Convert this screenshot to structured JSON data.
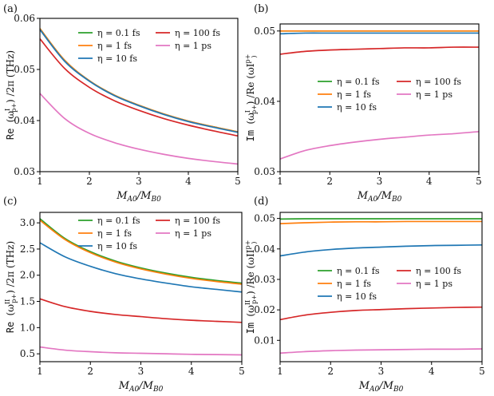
{
  "colors": {
    "eta_0_1fs": "#2ca02c",
    "eta_1fs": "#ff7f0e",
    "eta_10fs": "#1f77b4",
    "eta_100fs": "#d62728",
    "eta_1ps": "#e377c2"
  },
  "legend_labels": [
    "η = 0.1 fs",
    "η = 1 fs",
    "η = 10 fs",
    "η = 100 fs",
    "η = 1 ps"
  ],
  "chart_data": [
    {
      "type": "line",
      "panel": "(a)",
      "xlabel": "M_A0/M_B0",
      "ylabel": "Re (ω^I_{p+}) /2π (THz)",
      "xlim": [
        1,
        5
      ],
      "ylim": [
        0.03,
        0.06
      ],
      "xticks": [
        "1",
        "2",
        "3",
        "4",
        "5"
      ],
      "yticks": [
        "0.03",
        "0.04",
        "0.05",
        "0.06"
      ],
      "legend_position": "top-right",
      "x": [
        1,
        1.5,
        2,
        2.5,
        3,
        3.5,
        4,
        4.5,
        5
      ],
      "series": [
        {
          "name": "η = 0.1 fs",
          "values": [
            0.058,
            0.0518,
            0.0478,
            0.045,
            0.043,
            0.0413,
            0.0399,
            0.0388,
            0.0378
          ]
        },
        {
          "name": "η = 1 fs",
          "values": [
            0.058,
            0.0518,
            0.0478,
            0.045,
            0.043,
            0.0413,
            0.0399,
            0.0388,
            0.0378
          ]
        },
        {
          "name": "η = 10 fs",
          "values": [
            0.0578,
            0.0516,
            0.0477,
            0.0449,
            0.0429,
            0.0412,
            0.0398,
            0.0387,
            0.0377
          ]
        },
        {
          "name": "η = 100 fs",
          "values": [
            0.056,
            0.0502,
            0.0465,
            0.0439,
            0.042,
            0.0404,
            0.0391,
            0.038,
            0.037
          ]
        },
        {
          "name": "η = 1 ps",
          "values": [
            0.0453,
            0.0404,
            0.0375,
            0.0357,
            0.0344,
            0.0334,
            0.0326,
            0.032,
            0.0315
          ]
        }
      ]
    },
    {
      "type": "line",
      "panel": "(b)",
      "xlabel": "M_A0/M_B0",
      "ylabel": "Im (ω^I_{p+}) /Re (ω^I_{p+})",
      "xlim": [
        1,
        5
      ],
      "ylim": [
        0.03,
        0.051
      ],
      "xticks": [
        "1",
        "2",
        "3",
        "4",
        "5"
      ],
      "yticks": [
        "0.03",
        "0.04",
        "0.05"
      ],
      "legend_position": "center-right",
      "x": [
        1,
        1.5,
        2,
        2.5,
        3,
        3.5,
        4,
        4.5,
        5
      ],
      "series": [
        {
          "name": "η = 0.1 fs",
          "values": [
            0.05,
            0.05,
            0.05,
            0.05,
            0.05,
            0.05,
            0.05,
            0.05,
            0.05
          ]
        },
        {
          "name": "η = 1 fs",
          "values": [
            0.05,
            0.05,
            0.05,
            0.05,
            0.05,
            0.05,
            0.05,
            0.05,
            0.05
          ]
        },
        {
          "name": "η = 10 fs",
          "values": [
            0.0496,
            0.0497,
            0.0497,
            0.0497,
            0.0497,
            0.0497,
            0.0497,
            0.0497,
            0.0497
          ]
        },
        {
          "name": "η = 100 fs",
          "values": [
            0.0467,
            0.0471,
            0.0473,
            0.0474,
            0.0475,
            0.0476,
            0.0476,
            0.0477,
            0.0477
          ]
        },
        {
          "name": "η = 1 ps",
          "values": [
            0.0318,
            0.033,
            0.0337,
            0.0342,
            0.0346,
            0.0349,
            0.0352,
            0.0354,
            0.0357
          ]
        }
      ]
    },
    {
      "type": "line",
      "panel": "(c)",
      "xlabel": "M_A0/M_B0",
      "ylabel": "Re (ω^II_{p+}) /2π (THz)",
      "xlim": [
        1,
        5
      ],
      "ylim": [
        0.35,
        3.2
      ],
      "xticks": [
        "1",
        "2",
        "3",
        "4",
        "5"
      ],
      "yticks": [
        "0.5",
        "1.0",
        "1.5",
        "2.0",
        "2.5",
        "3.0"
      ],
      "legend_position": "top-right",
      "x": [
        1,
        1.5,
        2,
        2.5,
        3,
        3.5,
        4,
        4.5,
        5
      ],
      "series": [
        {
          "name": "η = 0.1 fs",
          "values": [
            3.08,
            2.7,
            2.45,
            2.27,
            2.14,
            2.04,
            1.96,
            1.9,
            1.85
          ]
        },
        {
          "name": "η = 1 fs",
          "values": [
            3.05,
            2.68,
            2.43,
            2.25,
            2.12,
            2.02,
            1.94,
            1.88,
            1.83
          ]
        },
        {
          "name": "η = 10 fs",
          "values": [
            2.62,
            2.35,
            2.17,
            2.03,
            1.93,
            1.85,
            1.78,
            1.73,
            1.68
          ]
        },
        {
          "name": "η = 100 fs",
          "values": [
            1.55,
            1.4,
            1.31,
            1.25,
            1.21,
            1.17,
            1.14,
            1.12,
            1.1
          ]
        },
        {
          "name": "η = 1 ps",
          "values": [
            0.63,
            0.57,
            0.54,
            0.52,
            0.51,
            0.5,
            0.49,
            0.485,
            0.48
          ]
        }
      ]
    },
    {
      "type": "line",
      "panel": "(d)",
      "xlabel": "M_A0/M_B0",
      "ylabel": "Im (ω^II_{p+}) /Re (ω^II_{p+})",
      "xlim": [
        1,
        5
      ],
      "ylim": [
        0.003,
        0.052
      ],
      "xticks": [
        "1",
        "2",
        "3",
        "4",
        "5"
      ],
      "yticks": [
        "0.01",
        "0.02",
        "0.03",
        "0.04",
        "0.05"
      ],
      "legend_position": "center-right",
      "x": [
        1,
        1.5,
        2,
        2.5,
        3,
        3.5,
        4,
        4.5,
        5
      ],
      "series": [
        {
          "name": "η = 0.1 fs",
          "values": [
            0.0498,
            0.0499,
            0.0499,
            0.0499,
            0.0499,
            0.0499,
            0.0499,
            0.0499,
            0.0499
          ]
        },
        {
          "name": "η = 1 fs",
          "values": [
            0.0483,
            0.0486,
            0.0488,
            0.0489,
            0.0489,
            0.049,
            0.049,
            0.049,
            0.049
          ]
        },
        {
          "name": "η = 10 fs",
          "values": [
            0.0377,
            0.039,
            0.0398,
            0.0403,
            0.0406,
            0.0409,
            0.0411,
            0.0412,
            0.0413
          ]
        },
        {
          "name": "η = 100 fs",
          "values": [
            0.0168,
            0.0183,
            0.0192,
            0.0198,
            0.0201,
            0.0204,
            0.0206,
            0.0208,
            0.0209
          ]
        },
        {
          "name": "η = 1 ps",
          "values": [
            0.0058,
            0.0063,
            0.0066,
            0.0068,
            0.0069,
            0.007,
            0.0071,
            0.0071,
            0.0072
          ]
        }
      ]
    }
  ]
}
